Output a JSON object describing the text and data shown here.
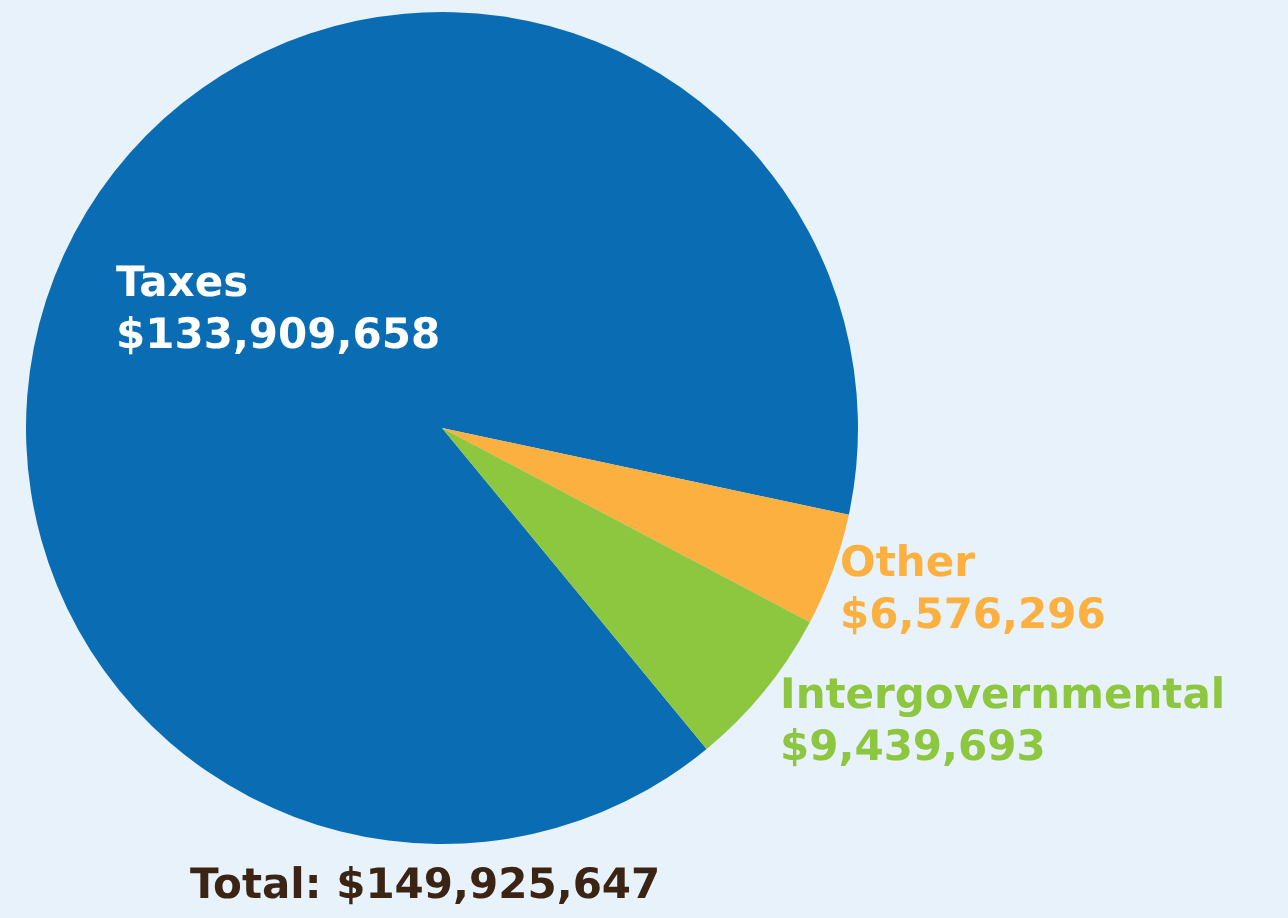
{
  "chart_data": {
    "type": "pie",
    "categories": [
      "Taxes",
      "Other",
      "Intergovernmental"
    ],
    "values": [
      133909658,
      6576296,
      9439693
    ],
    "value_labels": [
      "$133,909,658",
      "$6,576,296",
      "$9,439,693"
    ],
    "colors": [
      "#0a6db3",
      "#fbb040",
      "#8dc63f"
    ],
    "annotations": [
      "Total: $149,925,647"
    ],
    "legend": false
  }
}
